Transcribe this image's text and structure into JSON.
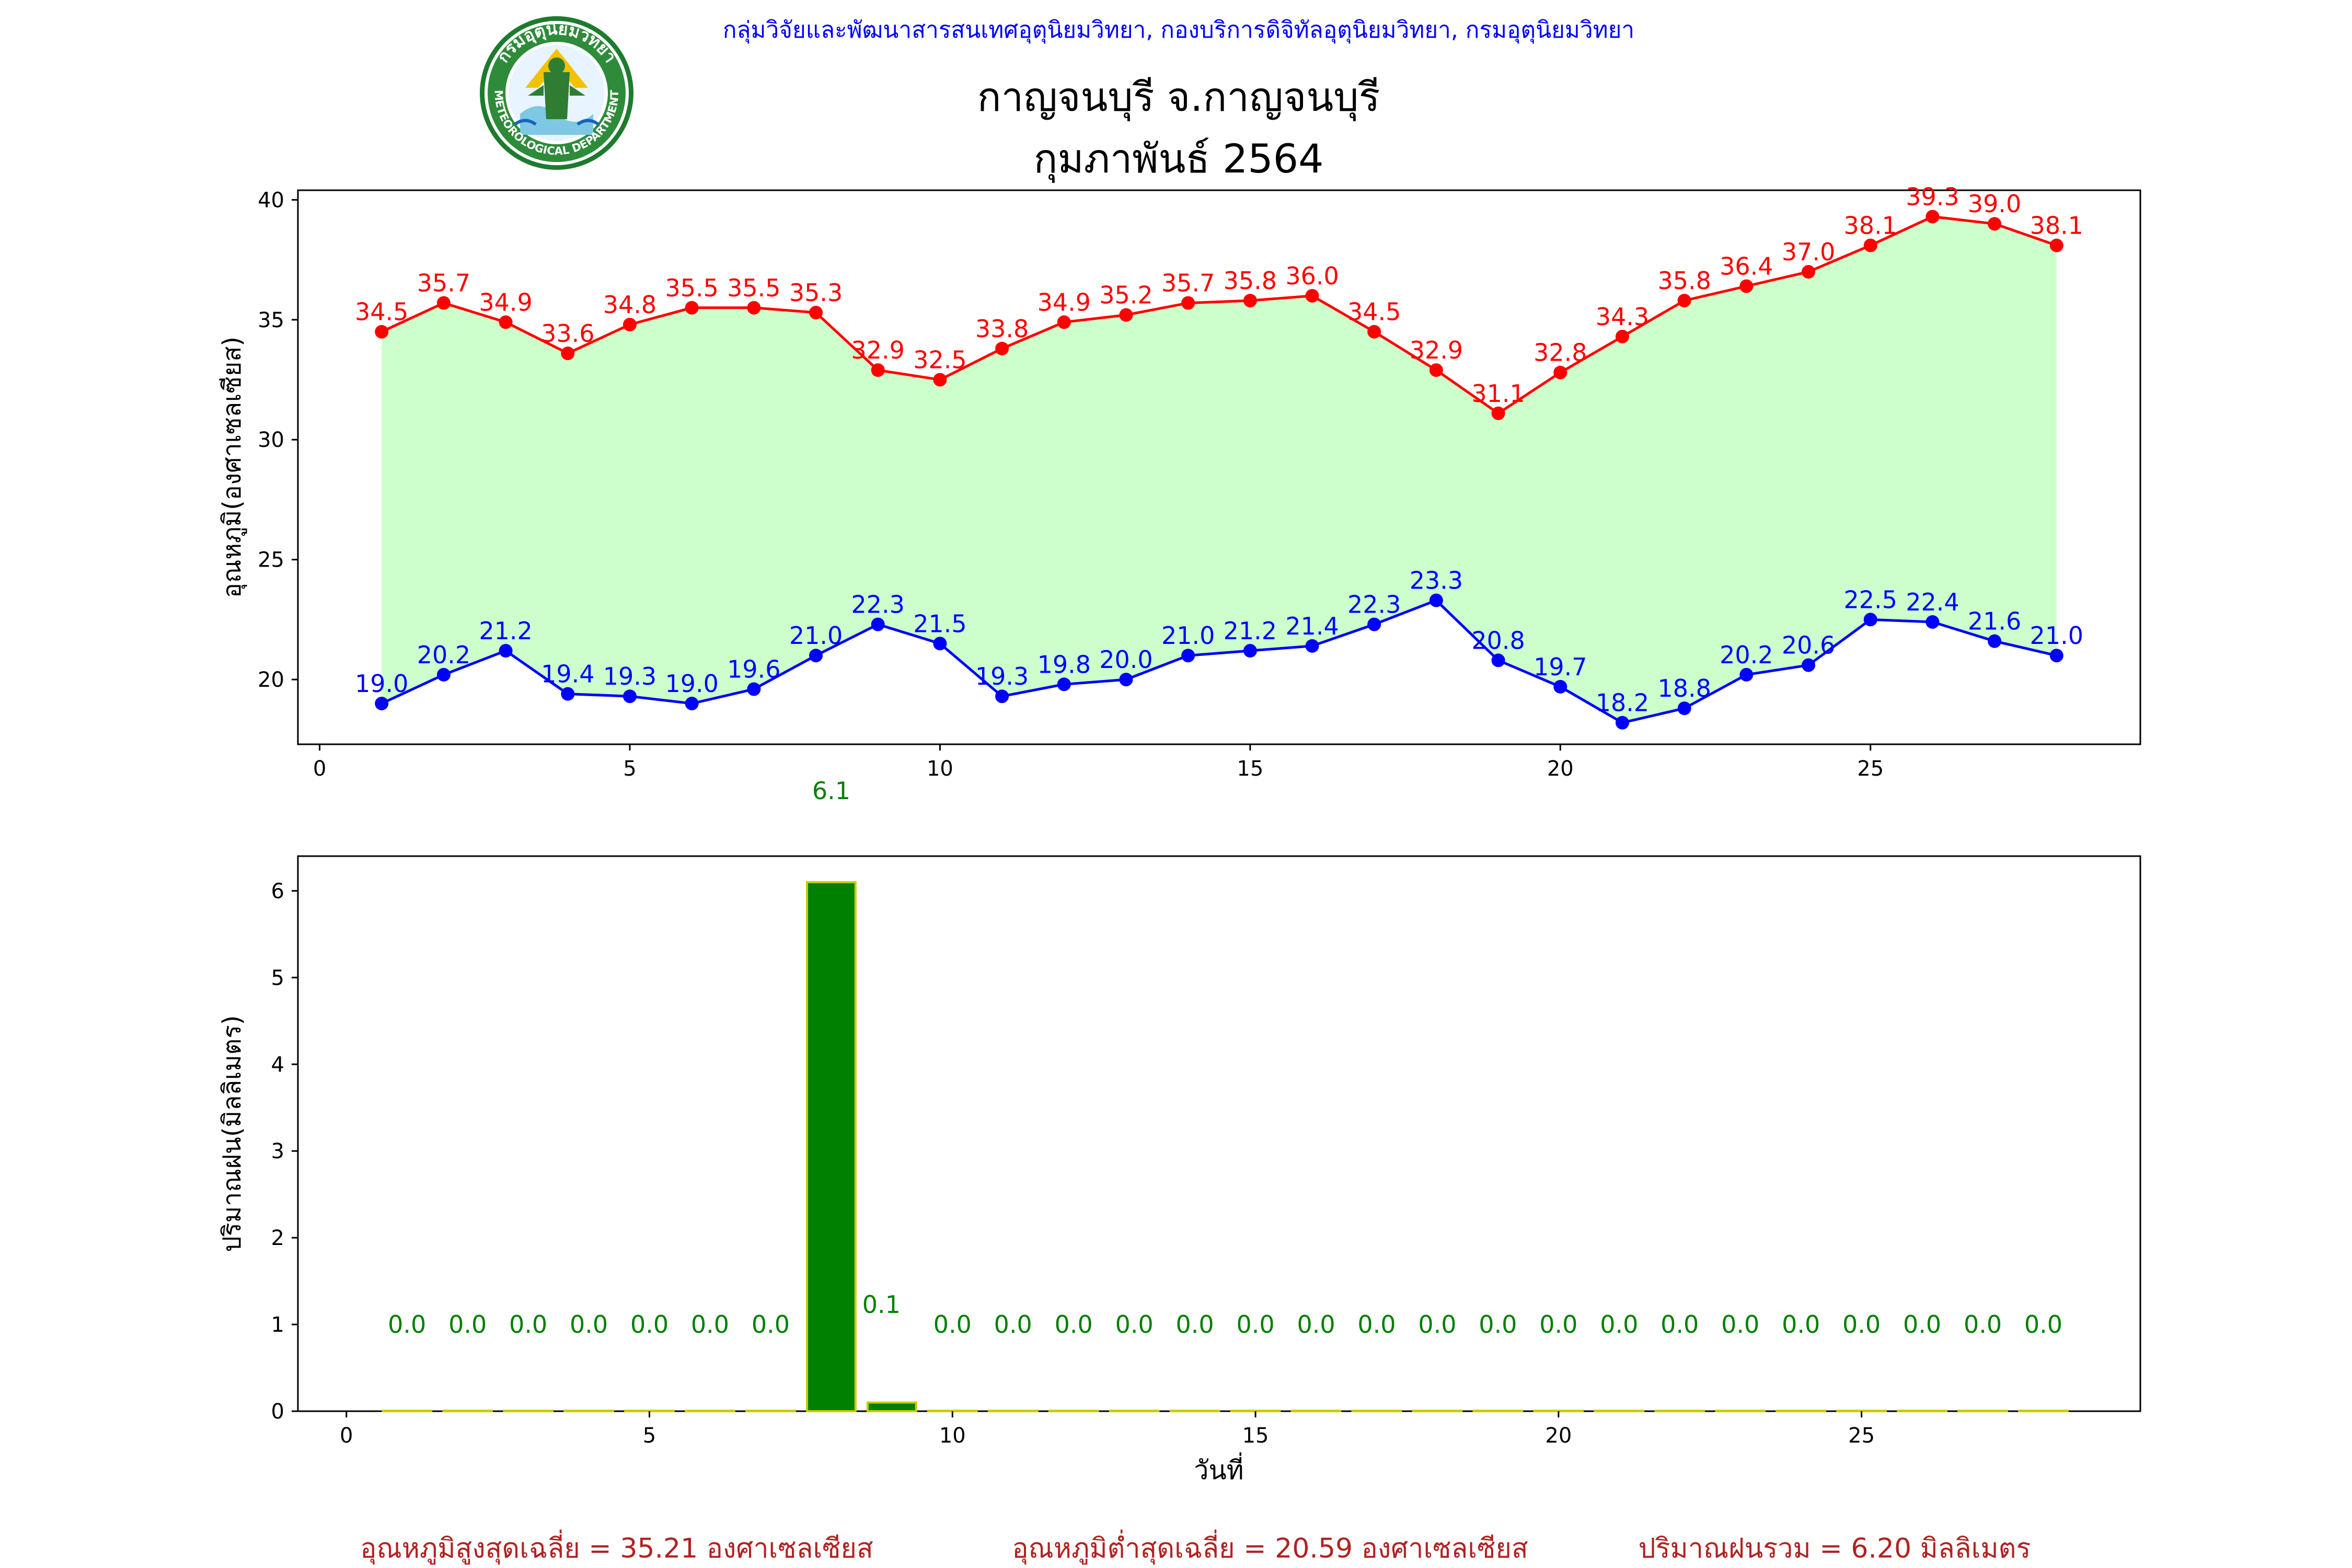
{
  "header": {
    "org_line": "กลุ่มวิจัยและพัฒนาสารสนเทศอุตุนิยมวิทยา, กองบริการดิจิทัลอุตุนิยมวิทยา, กรมอุตุนิยมวิทยา",
    "station": "กาญจนบุรี จ.กาญจนบุรี",
    "period": "กุมภาพันธ์ 2564"
  },
  "logo": {
    "top_text": "กรมอุตุนิยมวิทยา",
    "bottom_text": "METEOROLOGICAL DEPARTMENT"
  },
  "colors": {
    "max_line": "#ff0000",
    "min_line": "#0000ff",
    "fill_between": "#ccffcc",
    "rain_bar": "#008000",
    "rain_edge": "#cccc00",
    "rain_label": "#008000",
    "summary_text": "#b22222",
    "org_text": "#0000ff"
  },
  "chart_data": [
    {
      "type": "line",
      "ylabel": "อุณหภูมิ(องศาเซลเซียส)",
      "xlim": [
        -0.35,
        29.35
      ],
      "ylim": [
        17.3,
        40.4
      ],
      "xticks": [
        0,
        5,
        10,
        15,
        20,
        25
      ],
      "yticks": [
        20,
        25,
        30,
        35,
        40
      ],
      "x": [
        1,
        2,
        3,
        4,
        5,
        6,
        7,
        8,
        9,
        10,
        11,
        12,
        13,
        14,
        15,
        16,
        17,
        18,
        19,
        20,
        21,
        22,
        23,
        24,
        25,
        26,
        27,
        28
      ],
      "series": [
        {
          "key": "max",
          "values": [
            34.5,
            35.7,
            34.9,
            33.6,
            34.8,
            35.5,
            35.5,
            35.3,
            32.9,
            32.5,
            33.8,
            34.9,
            35.2,
            35.7,
            35.8,
            36.0,
            34.5,
            32.9,
            31.1,
            32.8,
            34.3,
            35.8,
            36.4,
            37.0,
            38.1,
            39.3,
            39.0,
            38.1
          ]
        },
        {
          "key": "min",
          "values": [
            19.0,
            20.2,
            21.2,
            19.4,
            19.3,
            19.0,
            19.6,
            21.0,
            22.3,
            21.5,
            19.3,
            19.8,
            20.0,
            21.0,
            21.2,
            21.4,
            22.3,
            23.3,
            20.8,
            19.7,
            18.2,
            18.8,
            20.2,
            20.6,
            22.5,
            22.4,
            21.6,
            21.0
          ]
        }
      ],
      "max_labels": [
        "34.5",
        "35.7",
        "34.9",
        "33.6",
        "34.8",
        "35.5",
        "35.5",
        "35.3",
        "32.9",
        "32.5",
        "33.8",
        "34.9",
        "35.2",
        "35.7",
        "35.8",
        "36.0",
        "34.5",
        "32.9",
        "31.1",
        "32.8",
        "34.3",
        "35.8",
        "36.4",
        "37.0",
        "38.1",
        "39.3",
        "39.0",
        "38.1"
      ],
      "min_labels": [
        "19.0",
        "20.2",
        "21.2",
        "19.4",
        "19.3",
        "19.0",
        "19.6",
        "21.0",
        "22.3",
        "21.5",
        "19.3",
        "19.8",
        "20.0",
        "21.0",
        "21.2",
        "21.4",
        "22.3",
        "23.3",
        "20.8",
        "19.7",
        "18.2",
        "18.8",
        "20.2",
        "20.6",
        "22.5",
        "22.4",
        "21.6",
        "21.0"
      ],
      "grid": false,
      "fill_between": true
    },
    {
      "type": "bar",
      "xlabel": "วันที่",
      "ylabel": "ปริมาณฝน(มิลลิเมตร)",
      "xlim": [
        -0.8,
        29.6
      ],
      "ylim": [
        0,
        6.4
      ],
      "xticks": [
        0,
        5,
        10,
        15,
        20,
        25
      ],
      "yticks": [
        0,
        1,
        2,
        3,
        4,
        5,
        6
      ],
      "x": [
        1,
        2,
        3,
        4,
        5,
        6,
        7,
        8,
        9,
        10,
        11,
        12,
        13,
        14,
        15,
        16,
        17,
        18,
        19,
        20,
        21,
        22,
        23,
        24,
        25,
        26,
        27,
        28
      ],
      "values": [
        0,
        0,
        0,
        0,
        0,
        0,
        0,
        6.1,
        0.1,
        0,
        0,
        0,
        0,
        0,
        0,
        0,
        0,
        0,
        0,
        0,
        0,
        0,
        0,
        0,
        0,
        0,
        0,
        0
      ],
      "labels": [
        "0.0",
        "0.0",
        "0.0",
        "0.0",
        "0.0",
        "0.0",
        "0.0",
        "6.1",
        "0.1",
        "0.0",
        "0.0",
        "0.0",
        "0.0",
        "0.0",
        "0.0",
        "0.0",
        "0.0",
        "0.0",
        "0.0",
        "0.0",
        "0.0",
        "0.0",
        "0.0",
        "0.0",
        "0.0",
        "0.0",
        "0.0",
        "0.0"
      ],
      "grid": false
    }
  ],
  "summary": {
    "avg_max": "อุณหภูมิสูงสุดเฉลี่ย = 35.21 องศาเซลเซียส",
    "avg_min": "อุณหภูมิต่ำสุดเฉลี่ย = 20.59 องศาเซลเซียส",
    "total_rain": "ปริมาณฝนรวม = 6.20 มิลลิเมตร"
  }
}
